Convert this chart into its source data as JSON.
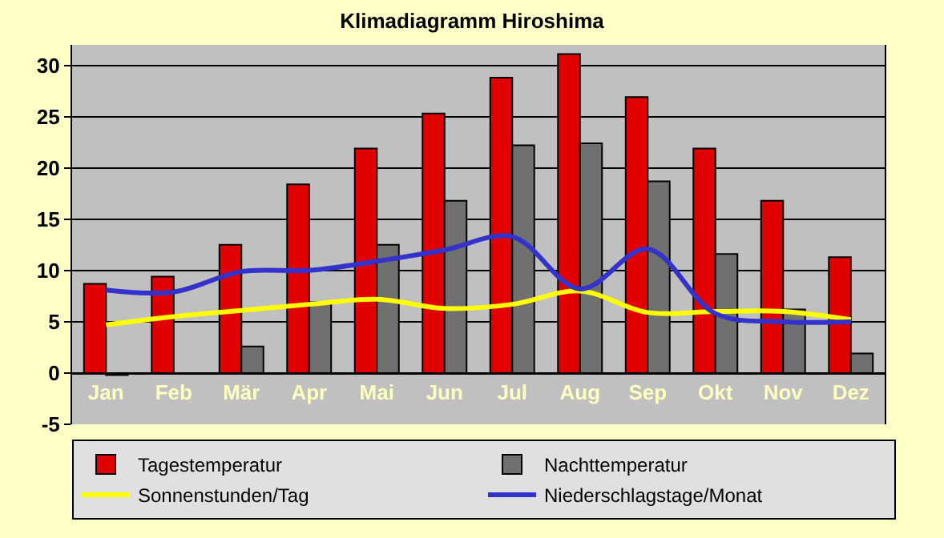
{
  "chart_data": {
    "type": "bar",
    "title": "Klimadiagramm Hiroshima",
    "categories": [
      "Jan",
      "Feb",
      "Mär",
      "Apr",
      "Mai",
      "Jun",
      "Jul",
      "Aug",
      "Sep",
      "Okt",
      "Nov",
      "Dez"
    ],
    "series": [
      {
        "name": "Tagestemperatur",
        "color": "#e00000",
        "values": [
          8.7,
          9.4,
          12.5,
          18.4,
          21.9,
          25.3,
          28.8,
          31.1,
          26.9,
          21.9,
          16.8,
          11.3
        ]
      },
      {
        "name": "Nachttemperatur",
        "color": "#707070",
        "values": [
          -0.2,
          null,
          2.6,
          6.9,
          12.5,
          16.8,
          22.2,
          22.4,
          18.7,
          11.6,
          6.2,
          1.9
        ]
      },
      {
        "name": "Sonnenstunden/Tag",
        "type": "line",
        "color": "#ffff00",
        "values": [
          4.7,
          5.5,
          6.1,
          6.7,
          7.2,
          6.3,
          6.7,
          8.0,
          5.9,
          6.0,
          6.0,
          5.2
        ]
      },
      {
        "name": "Niederschlagstage/Monat",
        "type": "line",
        "color": "#3333cc",
        "values": [
          8.1,
          7.9,
          9.9,
          10.0,
          10.9,
          12.0,
          13.3,
          8.2,
          12.1,
          5.8,
          5.0,
          5.0
        ]
      }
    ],
    "ylim": [
      -5,
      32
    ],
    "yticks": [
      -5,
      0,
      5,
      10,
      15,
      20,
      25,
      30
    ],
    "grid": "y",
    "legend": "bottom",
    "line_style": "solid",
    "marker": "none"
  }
}
